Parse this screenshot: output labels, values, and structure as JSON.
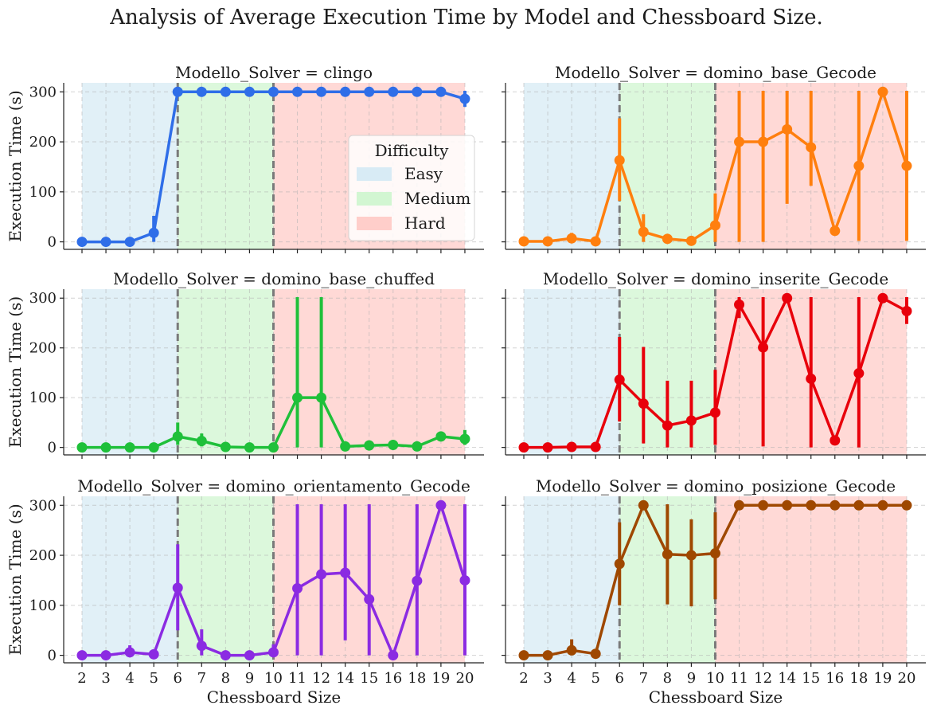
{
  "chart_data": {
    "type": "line",
    "title": "Analysis of Average Execution Time by Model and Chessboard Size.",
    "xlabel": "Chessboard Size",
    "ylabel": "Execution Time (s)",
    "categories": [
      "2",
      "3",
      "4",
      "5",
      "6",
      "7",
      "8",
      "9",
      "10",
      "11",
      "12",
      "14",
      "15",
      "16",
      "18",
      "19",
      "20"
    ],
    "ylim": [
      -15,
      318
    ],
    "yticks": [
      0,
      100,
      200,
      300
    ],
    "grid": true,
    "difficulty_bands": [
      {
        "name": "Easy",
        "from": "2",
        "to": "6",
        "color": "#d4e9f4"
      },
      {
        "name": "Medium",
        "from": "6",
        "to": "10",
        "color": "#cdf5cd"
      },
      {
        "name": "Hard",
        "from": "10",
        "to": "20",
        "color": "#ffc9c4"
      }
    ],
    "thresholds": [
      "6",
      "10"
    ],
    "legend": {
      "title": "Difficulty",
      "placement": "right",
      "panel": 0,
      "entries": [
        "Easy",
        "Medium",
        "Hard"
      ]
    },
    "panels": [
      {
        "title": "Modello_Solver = clingo",
        "color": "#2f6ee8",
        "values": [
          0,
          0,
          0,
          18,
          300,
          300,
          300,
          300,
          300,
          300,
          300,
          300,
          300,
          300,
          300,
          300,
          286
        ],
        "err_low": [
          0,
          0,
          0,
          0,
          300,
          300,
          300,
          300,
          300,
          300,
          300,
          300,
          300,
          300,
          300,
          300,
          270
        ],
        "err_high": [
          0,
          0,
          0,
          52,
          300,
          300,
          300,
          300,
          300,
          300,
          300,
          300,
          300,
          300,
          300,
          300,
          302
        ]
      },
      {
        "title": "Modello_Solver = domino_base_Gecode",
        "color": "#ff7f0e",
        "values": [
          1,
          1,
          7,
          1,
          163,
          20,
          6,
          2,
          33,
          200,
          200,
          225,
          189,
          22,
          152,
          300,
          152
        ],
        "err_low": [
          0,
          0,
          0,
          0,
          82,
          0,
          0,
          0,
          0,
          0,
          0,
          76,
          112,
          22,
          2,
          300,
          2
        ],
        "err_high": [
          3,
          3,
          18,
          3,
          247,
          55,
          14,
          5,
          97,
          302,
          302,
          302,
          302,
          22,
          302,
          300,
          302
        ]
      },
      {
        "title": "Modello_Solver = domino_base_chuffed",
        "color": "#1fc03a",
        "values": [
          0,
          0,
          0,
          0,
          22,
          13,
          1,
          0,
          0,
          100,
          100,
          2,
          4,
          5,
          2,
          22,
          17
        ],
        "err_low": [
          0,
          0,
          0,
          0,
          5,
          2,
          0,
          0,
          0,
          0,
          0,
          0,
          0,
          0,
          0,
          22,
          5
        ],
        "err_high": [
          0,
          0,
          0,
          0,
          50,
          28,
          3,
          0,
          0,
          302,
          302,
          5,
          8,
          10,
          5,
          22,
          35
        ]
      },
      {
        "title": "Modello_Solver = domino_inserite_Gecode",
        "color": "#e8000b",
        "values": [
          0,
          0,
          1,
          1,
          136,
          88,
          44,
          54,
          70,
          287,
          201,
          300,
          138,
          14,
          149,
          300,
          274
        ],
        "err_low": [
          0,
          0,
          0,
          0,
          52,
          8,
          0,
          0,
          5,
          260,
          2,
          300,
          0,
          14,
          0,
          300,
          248
        ],
        "err_high": [
          0,
          0,
          3,
          3,
          222,
          202,
          134,
          134,
          156,
          302,
          302,
          300,
          302,
          14,
          302,
          300,
          302
        ]
      },
      {
        "title": "Modello_Solver = domino_orientamento_Gecode",
        "color": "#8b2be2",
        "values": [
          0,
          0,
          6,
          2,
          135,
          19,
          0,
          0,
          6,
          134,
          162,
          165,
          112,
          0,
          149,
          300,
          150
        ],
        "err_low": [
          0,
          0,
          0,
          0,
          50,
          0,
          0,
          0,
          0,
          0,
          0,
          30,
          0,
          0,
          0,
          300,
          0
        ],
        "err_high": [
          0,
          0,
          20,
          5,
          222,
          52,
          0,
          0,
          22,
          302,
          302,
          302,
          302,
          0,
          302,
          300,
          302
        ]
      },
      {
        "title": "Modello_Solver = domino_posizione_Gecode",
        "color": "#9f4800",
        "values": [
          0,
          0,
          10,
          3,
          183,
          300,
          202,
          200,
          204,
          300,
          300,
          300,
          300,
          300,
          300,
          300,
          300
        ],
        "err_low": [
          0,
          0,
          0,
          0,
          100,
          300,
          102,
          98,
          112,
          300,
          300,
          300,
          300,
          300,
          300,
          300,
          300
        ],
        "err_high": [
          0,
          0,
          32,
          6,
          266,
          300,
          302,
          272,
          286,
          300,
          300,
          300,
          300,
          300,
          300,
          300,
          300
        ]
      }
    ]
  }
}
